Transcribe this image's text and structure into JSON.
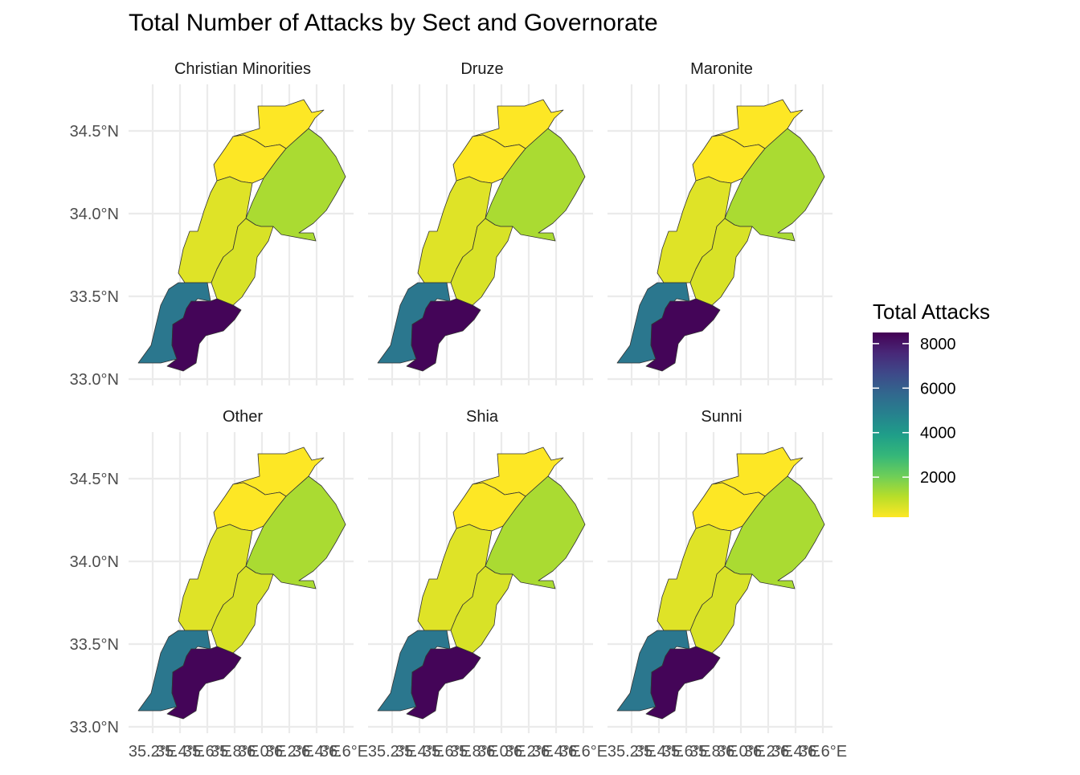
{
  "chart_data": {
    "type": "choropleth",
    "title": "Total Number of Attacks by Sect and Governorate",
    "legend": {
      "title": "Total Attacks",
      "placement": "right",
      "breaks": [
        2000,
        4000,
        6000,
        8000
      ],
      "range": [
        200,
        8500
      ],
      "palette": [
        "#fde725",
        "#b8de29",
        "#6ece58",
        "#35b779",
        "#1f9e89",
        "#26828e",
        "#31688e",
        "#3e4989",
        "#482878",
        "#440154"
      ]
    },
    "x_axis": {
      "ticks": [
        "35.2°E",
        "35.4°E",
        "35.6°E",
        "35.8°E",
        "36.0°E",
        "36.2°E",
        "36.4°E",
        "36.6°E"
      ]
    },
    "y_axis": {
      "ticks": [
        "33.0°N",
        "33.5°N",
        "34.0°N",
        "34.5°N"
      ]
    },
    "grid": true,
    "facets": [
      {
        "name": "Christian Minorities",
        "values": {
          "Akkar": 150,
          "North": 200,
          "Mount Lebanon": 600,
          "Baalbek-Hermel": 1300,
          "Beqaa": 700,
          "Beirut": 700,
          "South": 5200,
          "Nabatieh": 8400
        }
      },
      {
        "name": "Druze",
        "values": {
          "Akkar": 150,
          "North": 200,
          "Mount Lebanon": 600,
          "Baalbek-Hermel": 1300,
          "Beqaa": 700,
          "Beirut": 700,
          "South": 5200,
          "Nabatieh": 8400
        }
      },
      {
        "name": "Maronite",
        "values": {
          "Akkar": 150,
          "North": 200,
          "Mount Lebanon": 600,
          "Baalbek-Hermel": 1300,
          "Beqaa": 700,
          "Beirut": 700,
          "South": 5200,
          "Nabatieh": 8400
        }
      },
      {
        "name": "Other",
        "values": {
          "Akkar": 150,
          "North": 200,
          "Mount Lebanon": 600,
          "Baalbek-Hermel": 1300,
          "Beqaa": 700,
          "Beirut": 700,
          "South": 5200,
          "Nabatieh": 8400
        }
      },
      {
        "name": "Shia",
        "values": {
          "Akkar": 150,
          "North": 200,
          "Mount Lebanon": 600,
          "Baalbek-Hermel": 1300,
          "Beqaa": 700,
          "Beirut": 700,
          "South": 5200,
          "Nabatieh": 8400
        }
      },
      {
        "name": "Sunni",
        "values": {
          "Akkar": 150,
          "North": 200,
          "Mount Lebanon": 600,
          "Baalbek-Hermel": 1300,
          "Beqaa": 700,
          "Beirut": 700,
          "South": 5200,
          "Nabatieh": 8400
        }
      }
    ]
  }
}
